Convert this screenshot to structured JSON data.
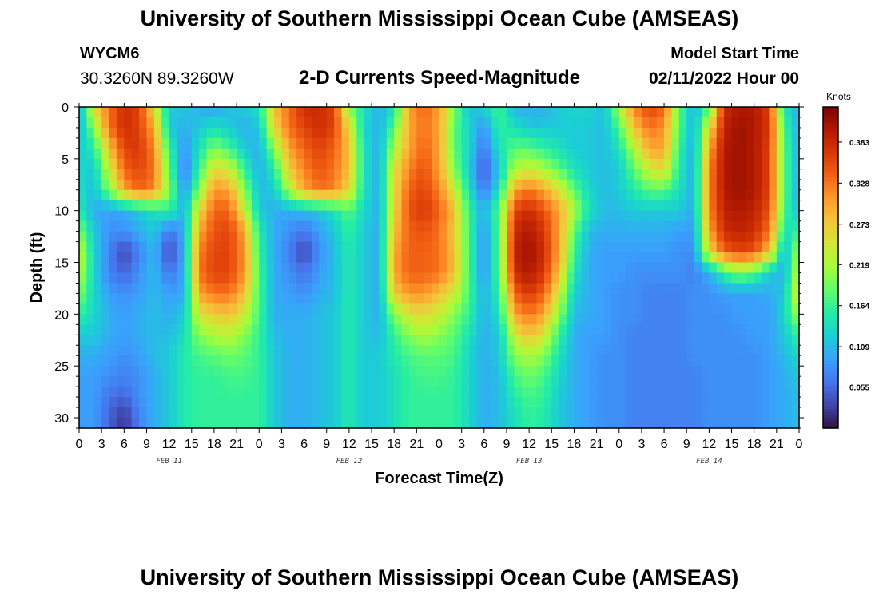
{
  "header": {
    "title": "University of Southern Mississippi Ocean Cube (AMSEAS)",
    "station_id": "WYCM6",
    "station_coords": "30.3260N  89.3260W",
    "subtitle": "2-D Currents Speed-Magnitude",
    "model_start_label": "Model Start Time",
    "model_start_value": "02/11/2022 Hour 00"
  },
  "footer": {
    "title": "University of Southern Mississippi Ocean Cube (AMSEAS)"
  },
  "chart_data": {
    "type": "heatmap",
    "title": "2-D Currents Speed-Magnitude",
    "xlabel": "Forecast Time(Z)",
    "ylabel": "Depth (ft)",
    "colorbar_label": "Knots",
    "xlim": [
      0,
      96
    ],
    "ylim": [
      31,
      0
    ],
    "x_tick_hours": [
      0,
      3,
      6,
      9,
      12,
      15,
      18,
      21,
      24,
      27,
      30,
      33,
      36,
      39,
      42,
      45,
      48,
      51,
      54,
      57,
      60,
      63,
      66,
      69,
      72,
      75,
      78,
      81,
      84,
      87,
      90,
      93,
      96
    ],
    "x_tick_labels": [
      "0",
      "3",
      "6",
      "9",
      "12",
      "15",
      "18",
      "21",
      "0",
      "3",
      "6",
      "9",
      "12",
      "15",
      "18",
      "21",
      "0",
      "3",
      "6",
      "9",
      "12",
      "15",
      "18",
      "21",
      "0",
      "3",
      "6",
      "9",
      "12",
      "15",
      "18",
      "21",
      "0"
    ],
    "date_labels": [
      {
        "text": "FEB 11",
        "hour": 12
      },
      {
        "text": "FEB 12",
        "hour": 36
      },
      {
        "text": "FEB 13",
        "hour": 60
      },
      {
        "text": "FEB 14",
        "hour": 84
      }
    ],
    "y_ticks": [
      0,
      5,
      10,
      15,
      20,
      25,
      30
    ],
    "colorbar_ticks": [
      0.055,
      0.109,
      0.164,
      0.219,
      0.273,
      0.328,
      0.383
    ],
    "colorbar_range": [
      0.0,
      0.43
    ],
    "colormap": [
      "#30123b",
      "#4145ab",
      "#4675ed",
      "#39a2fc",
      "#1bcfd4",
      "#24eca6",
      "#61fc6c",
      "#a4fc3b",
      "#d1e834",
      "#f3c63a",
      "#fe9b2d",
      "#f36315",
      "#d93806",
      "#b11901",
      "#7a0402"
    ],
    "time_hours": [
      0,
      2,
      4,
      6,
      8,
      10,
      12,
      14,
      16,
      18,
      20,
      22,
      24,
      26,
      28,
      30,
      32,
      34,
      36,
      38,
      40,
      42,
      44,
      46,
      48,
      50,
      52,
      54,
      56,
      58,
      60,
      62,
      64,
      66,
      68,
      70,
      72,
      74,
      76,
      78,
      80,
      82,
      84,
      86,
      88,
      90,
      92,
      94,
      96
    ],
    "depth_ft": [
      0,
      2,
      4,
      6,
      8,
      10,
      12,
      14,
      16,
      18,
      20,
      22,
      24,
      26,
      28,
      30
    ],
    "speed_knots": [
      [
        0.09,
        0.26,
        0.33,
        0.38,
        0.36,
        0.26,
        0.12,
        0.12,
        0.1,
        0.09,
        0.11,
        0.12,
        0.14,
        0.28,
        0.33,
        0.38,
        0.38,
        0.36,
        0.2,
        0.14,
        0.1,
        0.14,
        0.3,
        0.34,
        0.3,
        0.2,
        0.11,
        0.13,
        0.17,
        0.1,
        0.1,
        0.1,
        0.12,
        0.13,
        0.13,
        0.11,
        0.22,
        0.32,
        0.36,
        0.34,
        0.18,
        0.1,
        0.18,
        0.38,
        0.4,
        0.4,
        0.36,
        0.14,
        0.1
      ],
      [
        0.1,
        0.2,
        0.33,
        0.38,
        0.36,
        0.3,
        0.12,
        0.1,
        0.12,
        0.14,
        0.12,
        0.1,
        0.12,
        0.26,
        0.33,
        0.36,
        0.38,
        0.36,
        0.26,
        0.13,
        0.1,
        0.18,
        0.3,
        0.33,
        0.3,
        0.18,
        0.13,
        0.08,
        0.16,
        0.14,
        0.12,
        0.12,
        0.12,
        0.12,
        0.12,
        0.11,
        0.17,
        0.28,
        0.33,
        0.31,
        0.18,
        0.1,
        0.26,
        0.39,
        0.41,
        0.4,
        0.37,
        0.17,
        0.1
      ],
      [
        0.12,
        0.15,
        0.28,
        0.36,
        0.37,
        0.32,
        0.16,
        0.08,
        0.14,
        0.2,
        0.17,
        0.12,
        0.1,
        0.2,
        0.3,
        0.34,
        0.36,
        0.34,
        0.28,
        0.14,
        0.1,
        0.22,
        0.3,
        0.34,
        0.3,
        0.18,
        0.13,
        0.06,
        0.14,
        0.18,
        0.18,
        0.16,
        0.14,
        0.12,
        0.12,
        0.11,
        0.14,
        0.22,
        0.3,
        0.3,
        0.16,
        0.1,
        0.3,
        0.4,
        0.41,
        0.4,
        0.36,
        0.18,
        0.1
      ],
      [
        0.13,
        0.12,
        0.24,
        0.34,
        0.36,
        0.33,
        0.18,
        0.06,
        0.16,
        0.26,
        0.24,
        0.16,
        0.1,
        0.15,
        0.27,
        0.32,
        0.35,
        0.33,
        0.28,
        0.14,
        0.1,
        0.25,
        0.32,
        0.35,
        0.3,
        0.2,
        0.12,
        0.04,
        0.12,
        0.22,
        0.24,
        0.22,
        0.18,
        0.14,
        0.12,
        0.11,
        0.12,
        0.18,
        0.24,
        0.26,
        0.15,
        0.1,
        0.32,
        0.4,
        0.41,
        0.4,
        0.36,
        0.18,
        0.1
      ],
      [
        0.14,
        0.11,
        0.2,
        0.3,
        0.34,
        0.32,
        0.2,
        0.08,
        0.2,
        0.31,
        0.3,
        0.2,
        0.11,
        0.12,
        0.22,
        0.3,
        0.33,
        0.32,
        0.26,
        0.14,
        0.1,
        0.26,
        0.34,
        0.36,
        0.32,
        0.24,
        0.14,
        0.06,
        0.14,
        0.3,
        0.33,
        0.3,
        0.25,
        0.18,
        0.13,
        0.11,
        0.12,
        0.15,
        0.18,
        0.18,
        0.14,
        0.1,
        0.32,
        0.4,
        0.41,
        0.4,
        0.36,
        0.18,
        0.1
      ],
      [
        0.15,
        0.1,
        0.09,
        0.1,
        0.12,
        0.14,
        0.16,
        0.1,
        0.26,
        0.34,
        0.34,
        0.24,
        0.12,
        0.1,
        0.1,
        0.11,
        0.12,
        0.14,
        0.18,
        0.13,
        0.1,
        0.26,
        0.35,
        0.37,
        0.34,
        0.28,
        0.16,
        0.1,
        0.18,
        0.36,
        0.38,
        0.35,
        0.3,
        0.22,
        0.14,
        0.11,
        0.11,
        0.12,
        0.12,
        0.12,
        0.12,
        0.1,
        0.32,
        0.39,
        0.4,
        0.39,
        0.35,
        0.17,
        0.11
      ],
      [
        0.2,
        0.12,
        0.08,
        0.08,
        0.1,
        0.12,
        0.06,
        0.1,
        0.3,
        0.35,
        0.36,
        0.3,
        0.15,
        0.1,
        0.08,
        0.06,
        0.09,
        0.12,
        0.16,
        0.12,
        0.1,
        0.28,
        0.34,
        0.35,
        0.33,
        0.27,
        0.17,
        0.08,
        0.18,
        0.38,
        0.4,
        0.37,
        0.3,
        0.18,
        0.11,
        0.1,
        0.1,
        0.1,
        0.1,
        0.1,
        0.09,
        0.09,
        0.3,
        0.38,
        0.39,
        0.38,
        0.33,
        0.14,
        0.16
      ],
      [
        0.24,
        0.13,
        0.07,
        0.03,
        0.07,
        0.11,
        0.03,
        0.1,
        0.32,
        0.36,
        0.36,
        0.31,
        0.16,
        0.1,
        0.07,
        0.03,
        0.08,
        0.11,
        0.15,
        0.12,
        0.1,
        0.3,
        0.34,
        0.34,
        0.33,
        0.28,
        0.17,
        0.08,
        0.18,
        0.39,
        0.41,
        0.38,
        0.3,
        0.16,
        0.1,
        0.09,
        0.09,
        0.09,
        0.09,
        0.09,
        0.08,
        0.08,
        0.26,
        0.34,
        0.36,
        0.35,
        0.28,
        0.1,
        0.22
      ],
      [
        0.23,
        0.13,
        0.07,
        0.05,
        0.08,
        0.11,
        0.06,
        0.1,
        0.33,
        0.36,
        0.36,
        0.31,
        0.17,
        0.1,
        0.08,
        0.06,
        0.09,
        0.11,
        0.15,
        0.12,
        0.1,
        0.3,
        0.34,
        0.34,
        0.33,
        0.28,
        0.17,
        0.08,
        0.18,
        0.38,
        0.4,
        0.37,
        0.28,
        0.14,
        0.1,
        0.09,
        0.09,
        0.08,
        0.08,
        0.08,
        0.08,
        0.07,
        0.1,
        0.16,
        0.2,
        0.18,
        0.12,
        0.1,
        0.24
      ],
      [
        0.2,
        0.13,
        0.09,
        0.08,
        0.09,
        0.11,
        0.09,
        0.1,
        0.3,
        0.33,
        0.33,
        0.28,
        0.17,
        0.1,
        0.09,
        0.08,
        0.1,
        0.11,
        0.15,
        0.12,
        0.1,
        0.27,
        0.31,
        0.31,
        0.28,
        0.24,
        0.17,
        0.1,
        0.16,
        0.34,
        0.37,
        0.34,
        0.24,
        0.12,
        0.1,
        0.09,
        0.08,
        0.08,
        0.07,
        0.07,
        0.07,
        0.08,
        0.08,
        0.09,
        0.09,
        0.09,
        0.1,
        0.12,
        0.26
      ],
      [
        0.16,
        0.13,
        0.1,
        0.09,
        0.1,
        0.11,
        0.1,
        0.12,
        0.25,
        0.27,
        0.28,
        0.24,
        0.17,
        0.1,
        0.1,
        0.1,
        0.11,
        0.12,
        0.15,
        0.12,
        0.1,
        0.2,
        0.25,
        0.26,
        0.24,
        0.2,
        0.16,
        0.1,
        0.14,
        0.3,
        0.33,
        0.3,
        0.2,
        0.11,
        0.1,
        0.09,
        0.08,
        0.08,
        0.07,
        0.07,
        0.07,
        0.08,
        0.08,
        0.08,
        0.09,
        0.09,
        0.09,
        0.13,
        0.22
      ],
      [
        0.12,
        0.12,
        0.1,
        0.09,
        0.1,
        0.11,
        0.11,
        0.14,
        0.2,
        0.22,
        0.23,
        0.2,
        0.16,
        0.11,
        0.1,
        0.1,
        0.11,
        0.12,
        0.15,
        0.12,
        0.11,
        0.16,
        0.2,
        0.22,
        0.2,
        0.18,
        0.14,
        0.1,
        0.12,
        0.24,
        0.28,
        0.25,
        0.16,
        0.1,
        0.09,
        0.09,
        0.08,
        0.07,
        0.07,
        0.07,
        0.07,
        0.08,
        0.08,
        0.08,
        0.08,
        0.09,
        0.09,
        0.12,
        0.16
      ],
      [
        0.1,
        0.1,
        0.09,
        0.08,
        0.09,
        0.11,
        0.12,
        0.15,
        0.17,
        0.18,
        0.19,
        0.18,
        0.16,
        0.12,
        0.1,
        0.1,
        0.11,
        0.12,
        0.15,
        0.12,
        0.12,
        0.15,
        0.17,
        0.18,
        0.18,
        0.17,
        0.13,
        0.1,
        0.12,
        0.2,
        0.22,
        0.2,
        0.14,
        0.1,
        0.09,
        0.08,
        0.08,
        0.07,
        0.07,
        0.07,
        0.07,
        0.08,
        0.08,
        0.08,
        0.08,
        0.08,
        0.09,
        0.11,
        0.13
      ],
      [
        0.09,
        0.09,
        0.08,
        0.07,
        0.08,
        0.1,
        0.12,
        0.15,
        0.16,
        0.16,
        0.17,
        0.17,
        0.16,
        0.12,
        0.1,
        0.1,
        0.11,
        0.12,
        0.15,
        0.12,
        0.12,
        0.14,
        0.16,
        0.17,
        0.17,
        0.16,
        0.13,
        0.1,
        0.11,
        0.17,
        0.19,
        0.17,
        0.13,
        0.1,
        0.09,
        0.08,
        0.08,
        0.07,
        0.07,
        0.07,
        0.07,
        0.07,
        0.08,
        0.08,
        0.08,
        0.08,
        0.09,
        0.1,
        0.12
      ],
      [
        0.09,
        0.09,
        0.06,
        0.05,
        0.08,
        0.1,
        0.12,
        0.15,
        0.16,
        0.16,
        0.16,
        0.16,
        0.16,
        0.12,
        0.1,
        0.1,
        0.11,
        0.12,
        0.15,
        0.12,
        0.12,
        0.14,
        0.16,
        0.16,
        0.16,
        0.16,
        0.13,
        0.1,
        0.11,
        0.15,
        0.17,
        0.16,
        0.12,
        0.1,
        0.09,
        0.08,
        0.08,
        0.07,
        0.07,
        0.07,
        0.07,
        0.07,
        0.08,
        0.08,
        0.08,
        0.08,
        0.09,
        0.1,
        0.11
      ],
      [
        0.09,
        0.09,
        0.05,
        0.02,
        0.07,
        0.1,
        0.12,
        0.15,
        0.16,
        0.16,
        0.16,
        0.16,
        0.16,
        0.12,
        0.1,
        0.1,
        0.11,
        0.12,
        0.15,
        0.12,
        0.12,
        0.14,
        0.16,
        0.16,
        0.16,
        0.16,
        0.13,
        0.1,
        0.11,
        0.14,
        0.16,
        0.15,
        0.12,
        0.1,
        0.09,
        0.08,
        0.08,
        0.07,
        0.07,
        0.07,
        0.07,
        0.07,
        0.08,
        0.08,
        0.08,
        0.08,
        0.09,
        0.1,
        0.11
      ]
    ]
  }
}
